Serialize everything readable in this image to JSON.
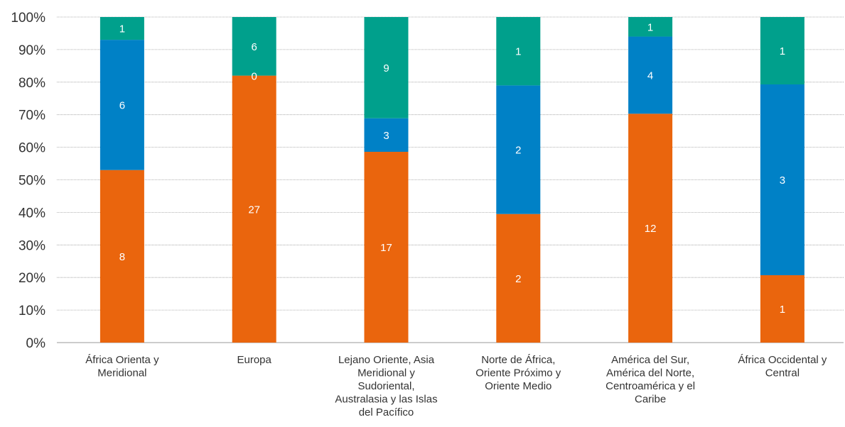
{
  "chart_data": {
    "type": "bar",
    "stacked": true,
    "normalized": true,
    "title": "",
    "xlabel": "",
    "ylabel": "",
    "ylim": [
      0,
      100
    ],
    "yticks": [
      "0%",
      "10%",
      "20%",
      "30%",
      "40%",
      "50%",
      "60%",
      "70%",
      "80%",
      "90%",
      "100%"
    ],
    "grid": true,
    "categories": [
      [
        "África Orienta y",
        "Meridional"
      ],
      [
        "Europa"
      ],
      [
        "Lejano Oriente, Asia",
        "Meridional y",
        "Sudoriental,",
        "Australasia y las Islas",
        "del Pacífico"
      ],
      [
        "Norte de África,",
        "Oriente Próximo y",
        "Oriente Medio"
      ],
      [
        "América del Sur,",
        "América del Norte,",
        "Centroamérica y el",
        "Caribe"
      ],
      [
        "África Occidental y",
        "Central"
      ]
    ],
    "series": [
      {
        "color": "#EA650D",
        "labels": [
          "8",
          "27",
          "17",
          "2",
          "12",
          "1"
        ],
        "percent": [
          53,
          82,
          58.6,
          39.5,
          70.3,
          20.7
        ]
      },
      {
        "color": "#0081C6",
        "labels": [
          "6",
          "",
          "3",
          "2",
          "4",
          "3"
        ],
        "percent": [
          40,
          0,
          10.3,
          39.5,
          23.7,
          58.6
        ]
      },
      {
        "color": "#00A08C",
        "labels": [
          "1",
          "6",
          "9",
          "1",
          "1",
          "1"
        ],
        "percent": [
          7,
          18,
          31.1,
          21,
          6,
          20.7
        ]
      }
    ],
    "extra_labels": [
      {
        "category_index": 1,
        "text": "0"
      }
    ]
  }
}
